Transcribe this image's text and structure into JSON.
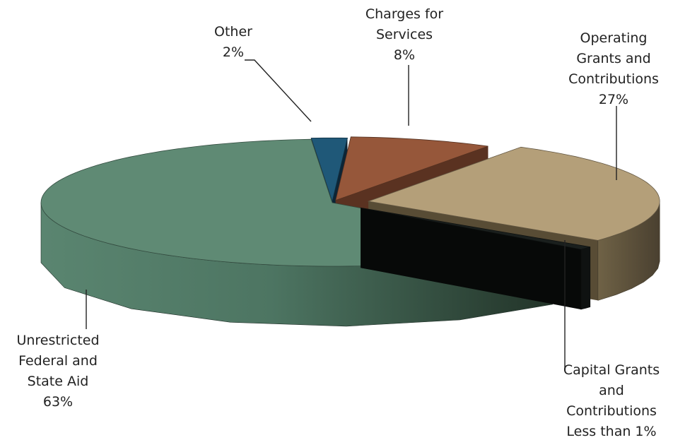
{
  "chart_data": {
    "type": "pie",
    "title": "",
    "style": "3d-exploded",
    "legend": "none",
    "slices": [
      {
        "name": "Charges for Services",
        "value": 8,
        "label_lines": [
          "Charges for",
          "Services",
          "8%"
        ],
        "color": "#96573a"
      },
      {
        "name": "Operating Grants and Contributions",
        "value": 27,
        "label_lines": [
          "Operating",
          "Grants and",
          "Contributions",
          "27%"
        ],
        "color": "#b49f79"
      },
      {
        "name": "Capital Grants and Contributions",
        "value": 0.8,
        "label_lines": [
          "Capital Grants",
          "and",
          "Contributions",
          "Less than 1%"
        ],
        "color": "#1a1f1d"
      },
      {
        "name": "Unrestricted Federal and State Aid",
        "value": 63,
        "label_lines": [
          "Unrestricted",
          "Federal and",
          "State Aid",
          "63%"
        ],
        "color": "#5f8a74"
      },
      {
        "name": "Other",
        "value": 2,
        "label_lines": [
          "Other",
          "2%"
        ],
        "color": "#1f5878"
      }
    ]
  }
}
